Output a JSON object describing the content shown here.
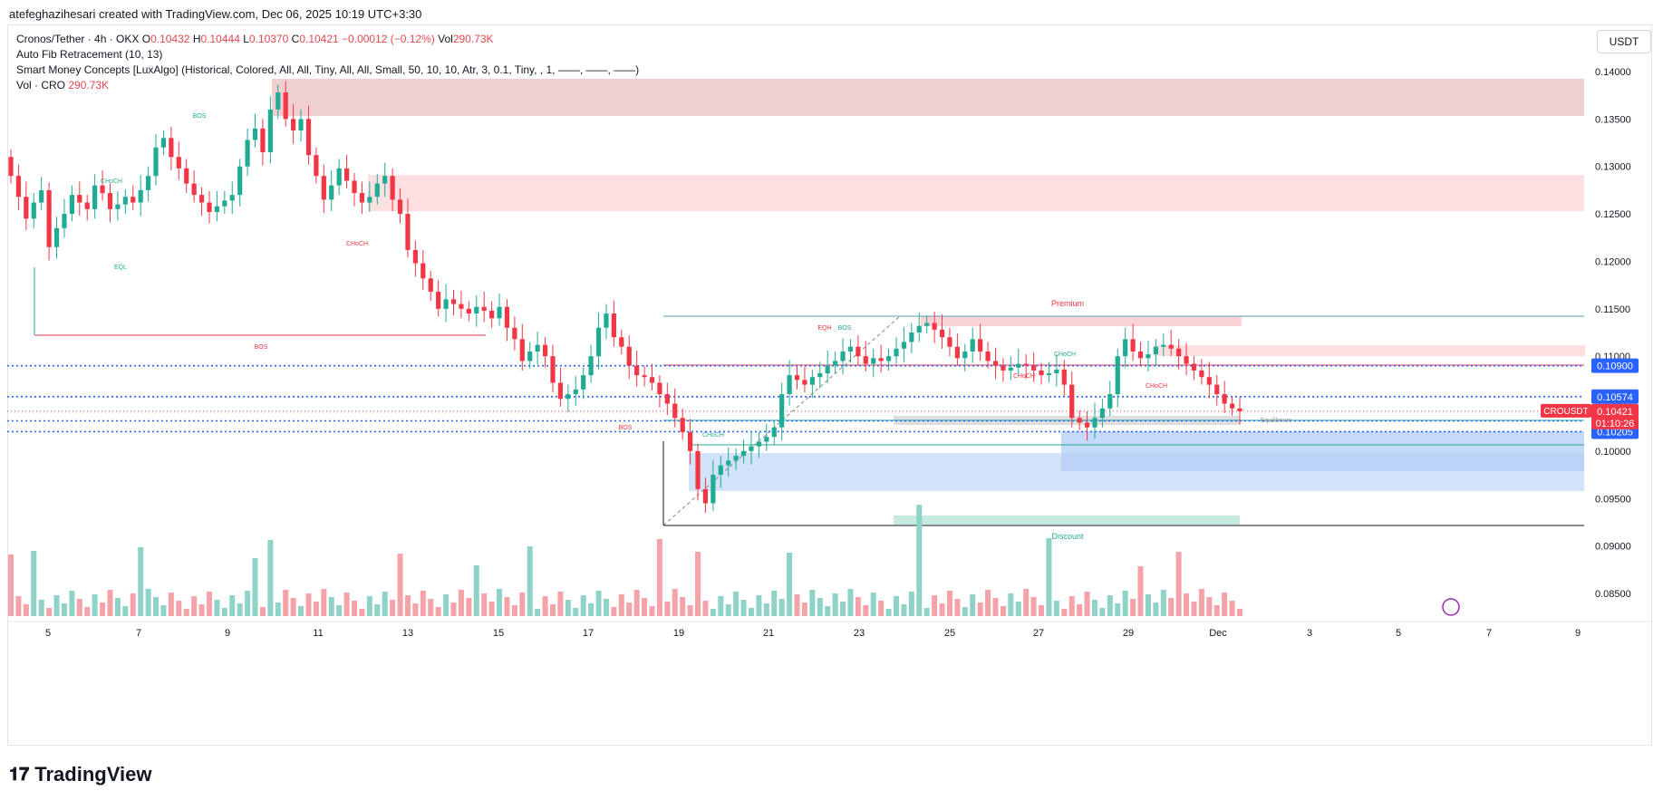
{
  "header": {
    "created_by": "atefeghazihesari created with TradingView.com, Dec 06, 2025 10:19 UTC+3:30"
  },
  "legend": {
    "symbol_line": "Cronos/Tether · 4h · OKX",
    "open_label": "O",
    "open": "0.10432",
    "high_label": "H",
    "high": "0.10444",
    "low_label": "L",
    "low": "0.10370",
    "close_label": "C",
    "close": "0.10421",
    "change": "−0.00012 (−0.12%)",
    "vol_label": "Vol",
    "vol": "290.73K",
    "indicator1": "Auto Fib Retracement (10, 13)",
    "indicator2": "Smart Money Concepts [LuxAlgo] (Historical, Colored, All, All, Tiny, All, All, Small, 50, 10, 10, Atr, 3, 0.1, Tiny, , 1, ——, ——, ——)",
    "volume_line": "Vol · CRO",
    "volume_value": "290.73K"
  },
  "currency_button": "USDT",
  "colors": {
    "bull": "#22ab94",
    "bear": "#f23645",
    "bull_vol": "#8fd3c8",
    "bear_vol": "#f5a3a8",
    "supply": "#f2c4c7",
    "demand": "#bcd7f7",
    "accent": "#2962ff"
  },
  "chart_data": {
    "type": "candlestick",
    "symbol": "CROUSDT",
    "timeframe": "4h",
    "y_axis": {
      "ticks": [
        "0.14000",
        "0.13500",
        "0.13000",
        "0.12500",
        "0.12000",
        "0.11500",
        "0.11000",
        "0.10500",
        "0.10000",
        "0.09500",
        "0.09000",
        "0.08500"
      ],
      "range": [
        0.0825,
        0.1425
      ]
    },
    "x_axis": {
      "ticks": [
        "5",
        "7",
        "9",
        "11",
        "13",
        "15",
        "17",
        "19",
        "21",
        "23",
        "25",
        "27",
        "29",
        "Dec",
        "3",
        "5",
        "7",
        "9"
      ]
    },
    "price_labels": [
      {
        "text": "0.10900",
        "value": 0.109,
        "color": "#2962ff"
      },
      {
        "text": "0.10574",
        "value": 0.10574,
        "color": "#2962ff"
      },
      {
        "text": "0.10319",
        "value": 0.10319,
        "color": "#2962ff"
      },
      {
        "text": "0.10205",
        "value": 0.10205,
        "color": "#2962ff"
      }
    ],
    "last_price": {
      "symbol": "CROUSDT",
      "price": "0.10421",
      "countdown": "01:10:26",
      "value": 0.10421
    },
    "annotations": [
      "BOS",
      "CHoCH",
      "EQL",
      "CHoCH",
      "BOS",
      "Premium",
      "EQH",
      "BOS",
      "CHoCH",
      "CHoCH",
      "CHoCH",
      "CHoCH",
      "BOS",
      "Equilibrium",
      "Discount"
    ],
    "series": [
      {
        "name": "Vol · CRO",
        "last": "290.73K"
      }
    ]
  }
}
